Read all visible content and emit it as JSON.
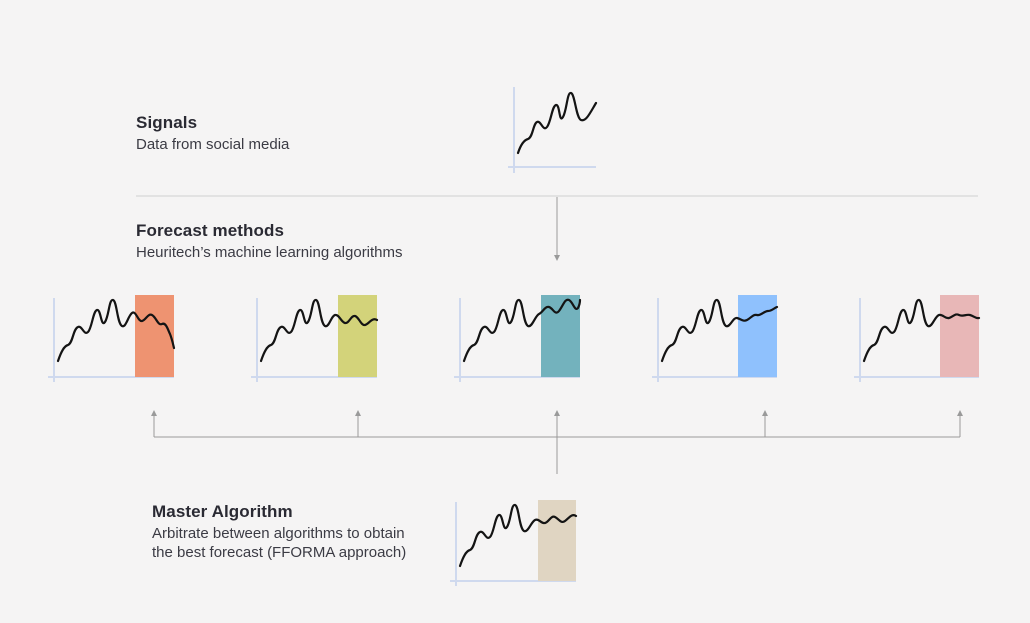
{
  "signals": {
    "title": "Signals",
    "subtitle": "Data from social media"
  },
  "forecast": {
    "title": "Forecast methods",
    "subtitle": "Heuritech’s machine learning algorithms",
    "methods": [
      {
        "color": "#ee9371"
      },
      {
        "color": "#d3d37a"
      },
      {
        "color": "#73b2bd"
      },
      {
        "color": "#8fc1fd"
      },
      {
        "color": "#e8b7b7"
      }
    ]
  },
  "master": {
    "title": "Master Algorithm",
    "subtitle_line1": "Arbitrate between algorithms to obtain",
    "subtitle_line2": "the best forecast (FFORMA approach)",
    "color": "#e0d5c2"
  },
  "colors": {
    "axis": "#cfd9ee",
    "line": "#141414",
    "connector": "#9a9a9a",
    "divider": "#cfcfcf"
  }
}
